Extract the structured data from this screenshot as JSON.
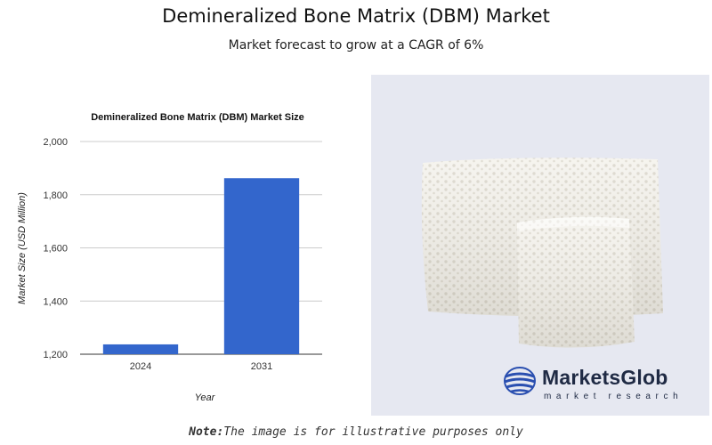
{
  "header": {
    "title": "Demineralized Bone Matrix (DBM) Market",
    "subtitle": "Market forecast to grow at a CAGR of 6%"
  },
  "chart_data": {
    "type": "bar",
    "title": "Demineralized Bone Matrix (DBM) Market Size",
    "categories": [
      "2024",
      "2031"
    ],
    "values": [
      1237,
      1862
    ],
    "xlabel": "Year",
    "ylabel": "Market Size (USD Million)",
    "ylim": [
      1200,
      2000
    ],
    "yticks": [
      "1,200",
      "1,400",
      "1,600",
      "1,800",
      "2,000"
    ],
    "ytick_values": [
      1200,
      1400,
      1600,
      1800,
      2000
    ],
    "grid": true,
    "bar_color": "#3366cc"
  },
  "logo": {
    "name": "MarketsGlob",
    "tagline": "market research"
  },
  "note": {
    "label": "Note:",
    "text": "The image is for illustrative purposes only"
  }
}
